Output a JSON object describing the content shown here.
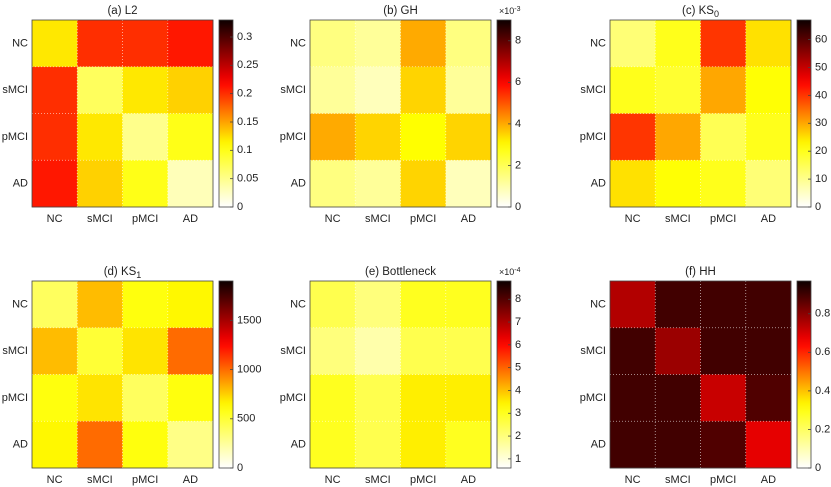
{
  "chart_data": [
    {
      "type": "heatmap",
      "title": "(a) L2",
      "categories": [
        "NC",
        "sMCI",
        "pMCI",
        "AD"
      ],
      "values": [
        [
          0.12,
          0.2,
          0.2,
          0.21
        ],
        [
          0.2,
          0.07,
          0.12,
          0.13
        ],
        [
          0.2,
          0.12,
          0.05,
          0.1
        ],
        [
          0.21,
          0.13,
          0.1,
          0.03
        ]
      ],
      "clim": [
        0,
        0.33
      ],
      "cticks": [
        0,
        0.05,
        0.1,
        0.15,
        0.2,
        0.25,
        0.3
      ]
    },
    {
      "type": "heatmap",
      "title": "(b) GH",
      "categories": [
        "NC",
        "sMCI",
        "pMCI",
        "AD"
      ],
      "values": [
        [
          0.0015,
          0.0012,
          0.004,
          0.0015
        ],
        [
          0.0012,
          0.0008,
          0.0035,
          0.0012
        ],
        [
          0.004,
          0.0035,
          0.003,
          0.0035
        ],
        [
          0.0015,
          0.0012,
          0.0035,
          0.0008
        ]
      ],
      "clim": [
        0,
        0.009
      ],
      "scale_label": {
        "base": "×10",
        "exponent": "-3"
      },
      "cticks": [
        {
          "value": 0,
          "label": "0"
        },
        {
          "value": 0.002,
          "label": "2"
        },
        {
          "value": 0.004,
          "label": "4"
        },
        {
          "value": 0.006,
          "label": "6"
        },
        {
          "value": 0.008,
          "label": "8"
        }
      ]
    },
    {
      "type": "heatmap",
      "title": "(c) KS",
      "title_subscript": "0",
      "categories": [
        "NC",
        "sMCI",
        "pMCI",
        "AD"
      ],
      "values": [
        [
          12,
          20,
          40,
          25
        ],
        [
          20,
          18,
          30,
          22
        ],
        [
          40,
          30,
          15,
          20
        ],
        [
          25,
          22,
          20,
          12
        ]
      ],
      "clim": [
        0,
        67
      ],
      "cticks": [
        0,
        10,
        20,
        30,
        40,
        50,
        60
      ]
    },
    {
      "type": "heatmap",
      "title": "(d) KS",
      "title_subscript": "1",
      "categories": [
        "NC",
        "sMCI",
        "pMCI",
        "AD"
      ],
      "values": [
        [
          400,
          800,
          600,
          650
        ],
        [
          800,
          500,
          700,
          1000
        ],
        [
          600,
          700,
          400,
          600
        ],
        [
          650,
          1000,
          600,
          300
        ]
      ],
      "clim": [
        0,
        1900
      ],
      "cticks": [
        0,
        500,
        1000,
        1500
      ]
    },
    {
      "type": "heatmap",
      "title": "(e) Bottleneck",
      "categories": [
        "NC",
        "sMCI",
        "pMCI",
        "AD"
      ],
      "values": [
        [
          0.00025,
          0.0002,
          0.0003,
          0.0003
        ],
        [
          0.0002,
          0.00015,
          0.00025,
          0.00025
        ],
        [
          0.0003,
          0.00025,
          0.00035,
          0.00035
        ],
        [
          0.0003,
          0.00025,
          0.00035,
          0.0003
        ]
      ],
      "clim": [
        6e-05,
        0.00088
      ],
      "scale_label": {
        "base": "×10",
        "exponent": "-4"
      },
      "cticks": [
        {
          "value": 0.0001,
          "label": "1"
        },
        {
          "value": 0.0002,
          "label": "2"
        },
        {
          "value": 0.0003,
          "label": "3"
        },
        {
          "value": 0.0004,
          "label": "4"
        },
        {
          "value": 0.0005,
          "label": "5"
        },
        {
          "value": 0.0006,
          "label": "6"
        },
        {
          "value": 0.0007,
          "label": "7"
        },
        {
          "value": 0.0008,
          "label": "8"
        }
      ]
    },
    {
      "type": "heatmap",
      "title": "(f) HH",
      "categories": [
        "NC",
        "sMCI",
        "pMCI",
        "AD"
      ],
      "values": [
        [
          0.75,
          0.9,
          0.9,
          0.9
        ],
        [
          0.9,
          0.78,
          0.9,
          0.9
        ],
        [
          0.9,
          0.9,
          0.72,
          0.88
        ],
        [
          0.9,
          0.9,
          0.88,
          0.68
        ]
      ],
      "clim": [
        0,
        0.97
      ],
      "cticks": [
        0,
        0.2,
        0.4,
        0.6,
        0.8
      ]
    }
  ]
}
